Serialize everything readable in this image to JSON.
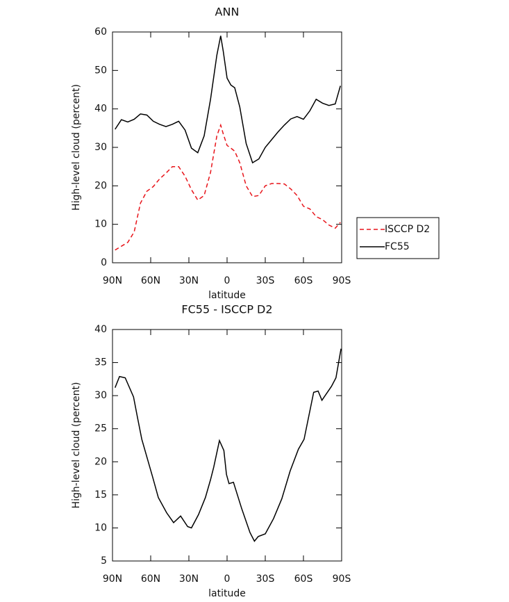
{
  "chart_data": [
    {
      "type": "line",
      "title": "ANN",
      "xlabel": "latitude",
      "ylabel": "High-level cloud (percent)",
      "x": [
        88,
        83,
        78,
        73,
        68,
        63,
        58,
        53,
        48,
        43,
        38,
        33,
        28,
        23,
        18,
        13,
        8,
        5,
        3,
        0,
        -3,
        -6,
        -10,
        -15,
        -20,
        -25,
        -30,
        -35,
        -40,
        -45,
        -50,
        -55,
        -60,
        -65,
        -70,
        -75,
        -80,
        -85,
        -89
      ],
      "series": [
        {
          "name": "ISCCP D2",
          "color": "#e8141a",
          "dashed": true,
          "values": [
            3.3,
            4.3,
            5.3,
            8,
            15.5,
            18.6,
            19.8,
            21.8,
            23.3,
            25,
            25,
            22.5,
            19,
            16.3,
            17.5,
            23.5,
            33,
            35.8,
            33.5,
            30.5,
            29.8,
            29,
            26,
            20,
            17.2,
            17.5,
            20,
            20.6,
            20.6,
            20.5,
            19.2,
            17.5,
            14.7,
            14,
            12,
            11.2,
            9.8,
            9,
            10.5
          ]
        },
        {
          "name": "FC55",
          "color": "#000000",
          "dashed": false,
          "values": [
            34.7,
            37.2,
            36.6,
            37.3,
            38.7,
            38.4,
            36.8,
            36,
            35.4,
            36,
            36.8,
            34.5,
            29.8,
            28.6,
            33,
            42.5,
            54,
            59,
            55,
            48,
            46.2,
            45.5,
            40.5,
            31,
            26,
            27,
            30,
            32,
            34,
            35.8,
            37.4,
            38,
            37.3,
            39.5,
            42.5,
            41.5,
            40.9,
            41.3,
            46
          ]
        }
      ],
      "xlim": [
        90,
        -90
      ],
      "xticks": [
        {
          "value": 90,
          "label": "90N"
        },
        {
          "value": 60,
          "label": "60N"
        },
        {
          "value": 30,
          "label": "30N"
        },
        0,
        {
          "value": -30,
          "label": "30S"
        },
        {
          "value": -60,
          "label": "60S"
        },
        {
          "value": -90,
          "label": "90S"
        }
      ],
      "ylim": [
        0,
        60
      ],
      "yticks": [
        0,
        10,
        20,
        30,
        40,
        50,
        60
      ],
      "legend": "right"
    },
    {
      "type": "line",
      "title": "FC55 - ISCCP D2",
      "xlabel": "latitude",
      "ylabel": "High-level cloud (percent)",
      "x": [
        88,
        84.5,
        80,
        73.5,
        70.5,
        67,
        58.5,
        54,
        47.5,
        42,
        36.5,
        31,
        28,
        22.5,
        17,
        13,
        10.5,
        6,
        2.5,
        0.5,
        -1.5,
        -5,
        -11.5,
        -18,
        -21.5,
        -24.5,
        -30,
        -36.5,
        -43,
        -49.5,
        -56,
        -60.5,
        -68,
        -71.5,
        -74.5,
        -82,
        -85.5,
        -89.5
      ],
      "values": [
        31.2,
        32.9,
        32.7,
        29.8,
        26.8,
        23.4,
        17.7,
        14.6,
        12.3,
        10.8,
        11.8,
        10.2,
        10,
        12,
        14.6,
        17.3,
        19.2,
        23.2,
        21.7,
        18.1,
        16.7,
        16.9,
        12.9,
        9.3,
        8,
        8.7,
        9.1,
        11.4,
        14.4,
        18.6,
        21.9,
        23.4,
        30.5,
        30.7,
        29.3,
        31.4,
        32.7,
        37.1
      ],
      "color": "#000000",
      "xlim": [
        90,
        -90
      ],
      "xticks": [
        {
          "value": 90,
          "label": "90N"
        },
        {
          "value": 60,
          "label": "60N"
        },
        {
          "value": 30,
          "label": "30N"
        },
        0,
        {
          "value": -30,
          "label": "30S"
        },
        {
          "value": -60,
          "label": "60S"
        },
        {
          "value": -90,
          "label": "90S"
        }
      ],
      "ylim": [
        5,
        40
      ],
      "yticks": [
        5,
        10,
        15,
        20,
        25,
        30,
        35,
        40
      ]
    }
  ]
}
